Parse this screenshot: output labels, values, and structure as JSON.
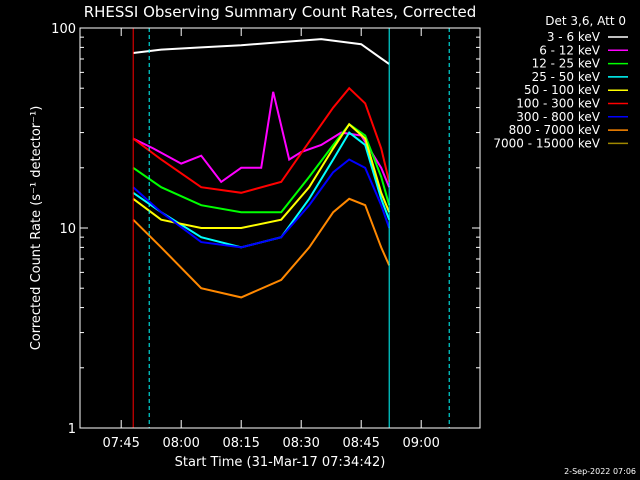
{
  "chart_data": {
    "type": "line",
    "title": "RHESSI Observing Summary Count Rates, Corrected",
    "xlabel": "Start Time (31-Mar-17 07:34:42)",
    "ylabel": "Corrected Count Rate (s⁻¹ detector⁻¹)",
    "y_scale": "log",
    "ylim": [
      1,
      100
    ],
    "xlim": [
      "07:34:42",
      "09:14:42"
    ],
    "x_ticks": [
      "07:45",
      "08:00",
      "08:15",
      "08:30",
      "08:45",
      "09:00"
    ],
    "y_ticks": [
      "1",
      "10",
      "100"
    ],
    "legend_title": "Det 3,6, Att 0",
    "legend_position": "right",
    "timestamp": "2-Sep-2022 07:06",
    "series": [
      {
        "name": "3 - 6 keV",
        "color": "#ffffff",
        "x": [
          "07:48",
          "07:55",
          "08:05",
          "08:15",
          "08:25",
          "08:35",
          "08:45",
          "08:52"
        ],
        "values": [
          75,
          78,
          80,
          82,
          85,
          88,
          83,
          66
        ]
      },
      {
        "name": "6 - 12 keV",
        "color": "#ff00ff",
        "x": [
          "07:48",
          "07:53",
          "08:00",
          "08:05",
          "08:10",
          "08:15",
          "08:20",
          "08:23",
          "08:27",
          "08:30",
          "08:35",
          "08:40",
          "08:45",
          "08:50",
          "08:52"
        ],
        "values": [
          28,
          25,
          21,
          23,
          17,
          20,
          20,
          48,
          22,
          24,
          26,
          30,
          29,
          20,
          16
        ]
      },
      {
        "name": "12 - 25 keV",
        "color": "#00ff00",
        "x": [
          "07:48",
          "07:55",
          "08:05",
          "08:15",
          "08:25",
          "08:32",
          "08:38",
          "08:42",
          "08:46",
          "08:50",
          "08:52"
        ],
        "values": [
          20,
          16,
          13,
          12,
          12,
          18,
          26,
          33,
          29,
          18,
          13
        ]
      },
      {
        "name": "25 - 50 keV",
        "color": "#00ffff",
        "x": [
          "07:48",
          "07:55",
          "08:05",
          "08:15",
          "08:25",
          "08:32",
          "08:38",
          "08:42",
          "08:46",
          "08:50",
          "08:52"
        ],
        "values": [
          15,
          12,
          9,
          8,
          9,
          14,
          22,
          30,
          26,
          14,
          11
        ]
      },
      {
        "name": "50 - 100 keV",
        "color": "#ffff00",
        "x": [
          "07:48",
          "07:55",
          "08:05",
          "08:15",
          "08:25",
          "08:32",
          "08:38",
          "08:42",
          "08:46",
          "08:50",
          "08:52"
        ],
        "values": [
          14,
          11,
          10,
          10,
          11,
          16,
          25,
          33,
          28,
          15,
          12
        ]
      },
      {
        "name": "100 - 300 keV",
        "color": "#ff0000",
        "x": [
          "07:48",
          "07:55",
          "08:05",
          "08:15",
          "08:25",
          "08:32",
          "08:38",
          "08:42",
          "08:46",
          "08:50",
          "08:52"
        ],
        "values": [
          28,
          22,
          16,
          15,
          17,
          27,
          40,
          50,
          42,
          25,
          17
        ]
      },
      {
        "name": "300 - 800 keV",
        "color": "#0000ff",
        "x": [
          "07:48",
          "07:55",
          "08:05",
          "08:15",
          "08:25",
          "08:32",
          "08:38",
          "08:42",
          "08:46",
          "08:50",
          "08:52"
        ],
        "values": [
          16,
          12,
          8.5,
          8,
          9,
          13,
          19,
          22,
          20,
          13,
          10
        ]
      },
      {
        "name": "800 - 7000 keV",
        "color": "#ff8800",
        "x": [
          "07:48",
          "07:55",
          "08:05",
          "08:15",
          "08:25",
          "08:32",
          "08:38",
          "08:42",
          "08:46",
          "08:50",
          "08:52"
        ],
        "values": [
          11,
          8,
          5,
          4.5,
          5.5,
          8,
          12,
          14,
          13,
          8,
          6.5
        ]
      },
      {
        "name": "7000 - 15000 keV",
        "color": "#a08800",
        "x": [],
        "values": []
      }
    ]
  }
}
